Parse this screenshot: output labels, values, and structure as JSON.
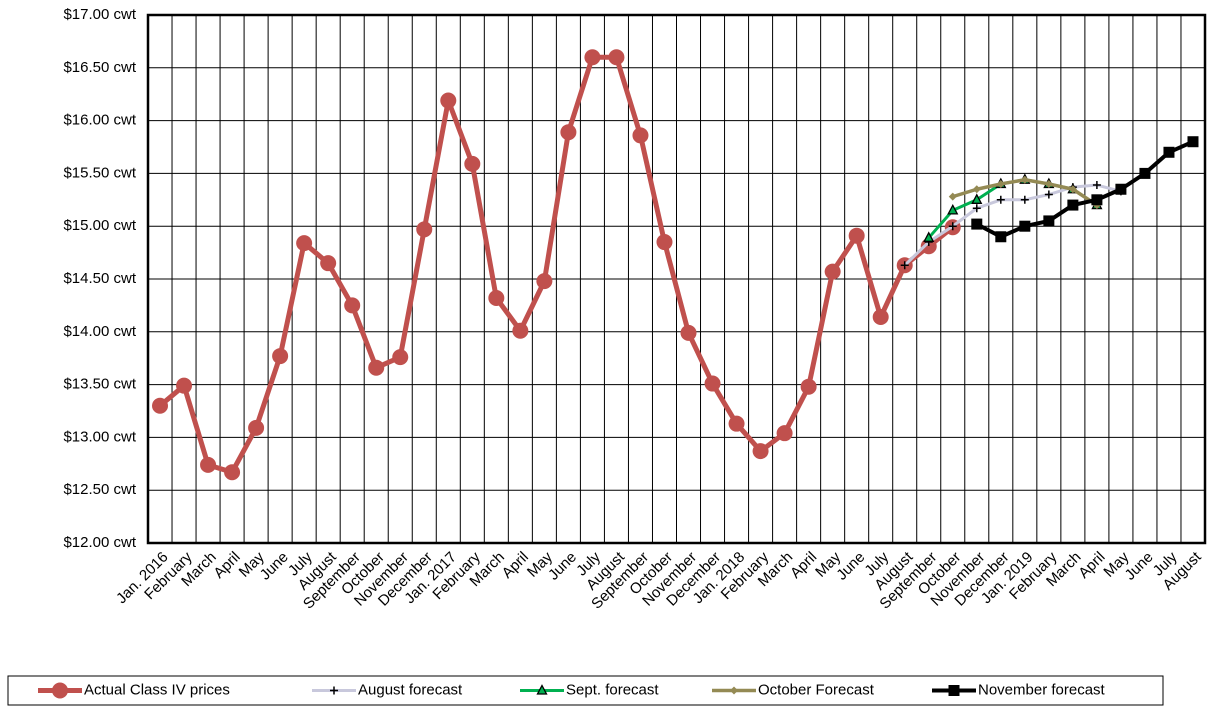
{
  "chart_data": {
    "type": "line",
    "categories": [
      "Jan. 2016",
      "February",
      "March",
      "April",
      "May",
      "June",
      "July",
      "August",
      "September",
      "October",
      "November",
      "December",
      "Jan. 2017",
      "February",
      "March",
      "April",
      "May",
      "June",
      "July",
      "August",
      "September",
      "October",
      "November",
      "December",
      "Jan. 2018",
      "February",
      "March",
      "April",
      "May",
      "June",
      "July",
      "August",
      "September",
      "October",
      "November",
      "December",
      "Jan. 2019",
      "February",
      "March",
      "April",
      "May",
      "June",
      "July",
      "August"
    ],
    "ylim": [
      12,
      17
    ],
    "yticks": [
      {
        "value": 12,
        "label": "$12.00 cwt"
      },
      {
        "value": 12.5,
        "label": "$12.50 cwt"
      },
      {
        "value": 13,
        "label": "$13.00 cwt"
      },
      {
        "value": 13.5,
        "label": "$13.50 cwt"
      },
      {
        "value": 14,
        "label": "$14.00 cwt"
      },
      {
        "value": 14.5,
        "label": "$14.50 cwt"
      },
      {
        "value": 15,
        "label": "$15.00 cwt"
      },
      {
        "value": 15.5,
        "label": "$15.50 cwt"
      },
      {
        "value": 16,
        "label": "$16.00 cwt"
      },
      {
        "value": 16.5,
        "label": "$16.50 cwt"
      },
      {
        "value": 17,
        "label": "$17.00 cwt"
      }
    ],
    "grid": true,
    "legend": "bottom",
    "series": [
      {
        "name": "Actual Class IV prices",
        "color": "#c0504d",
        "marker": "circle",
        "values": [
          13.3,
          13.49,
          12.74,
          12.67,
          13.09,
          13.77,
          14.84,
          14.65,
          14.25,
          13.66,
          13.76,
          14.97,
          16.19,
          15.59,
          14.32,
          14.01,
          14.48,
          15.89,
          16.6,
          16.6,
          15.86,
          14.85,
          13.99,
          13.51,
          13.13,
          12.87,
          13.04,
          13.48,
          14.57,
          14.91,
          14.14,
          14.63,
          14.81,
          14.99,
          null,
          null,
          null,
          null,
          null,
          null,
          null,
          null,
          null,
          null
        ]
      },
      {
        "name": "August forecast",
        "color": "#c8c8dc",
        "marker": "plus",
        "values": [
          null,
          null,
          null,
          null,
          null,
          null,
          null,
          null,
          null,
          null,
          null,
          null,
          null,
          null,
          null,
          null,
          null,
          null,
          null,
          null,
          null,
          null,
          null,
          null,
          null,
          null,
          null,
          null,
          null,
          null,
          null,
          14.63,
          14.85,
          15.0,
          15.17,
          15.25,
          15.25,
          15.3,
          15.37,
          15.39,
          15.33,
          null,
          null,
          null
        ]
      },
      {
        "name": "Sept. forecast",
        "color": "#00b050",
        "marker": "triangle",
        "values": [
          null,
          null,
          null,
          null,
          null,
          null,
          null,
          null,
          null,
          null,
          null,
          null,
          null,
          null,
          null,
          null,
          null,
          null,
          null,
          null,
          null,
          null,
          null,
          null,
          null,
          null,
          null,
          null,
          null,
          null,
          null,
          null,
          14.89,
          15.15,
          15.25,
          15.4,
          15.44,
          15.4,
          15.35,
          15.2,
          null,
          null,
          null,
          null
        ]
      },
      {
        "name": "October Forecast",
        "color": "#948a54",
        "marker": "diamond",
        "values": [
          null,
          null,
          null,
          null,
          null,
          null,
          null,
          null,
          null,
          null,
          null,
          null,
          null,
          null,
          null,
          null,
          null,
          null,
          null,
          null,
          null,
          null,
          null,
          null,
          null,
          null,
          null,
          null,
          null,
          null,
          null,
          null,
          null,
          15.28,
          15.35,
          15.4,
          15.44,
          15.4,
          15.35,
          15.2,
          null,
          null,
          null,
          null
        ]
      },
      {
        "name": "November forecast",
        "color": "#000000",
        "marker": "square",
        "values": [
          null,
          null,
          null,
          null,
          null,
          null,
          null,
          null,
          null,
          null,
          null,
          null,
          null,
          null,
          null,
          null,
          null,
          null,
          null,
          null,
          null,
          null,
          null,
          null,
          null,
          null,
          null,
          null,
          null,
          null,
          null,
          null,
          null,
          null,
          15.02,
          14.9,
          15.0,
          15.05,
          15.2,
          15.25,
          15.35,
          15.5,
          15.7,
          15.8
        ]
      }
    ]
  }
}
